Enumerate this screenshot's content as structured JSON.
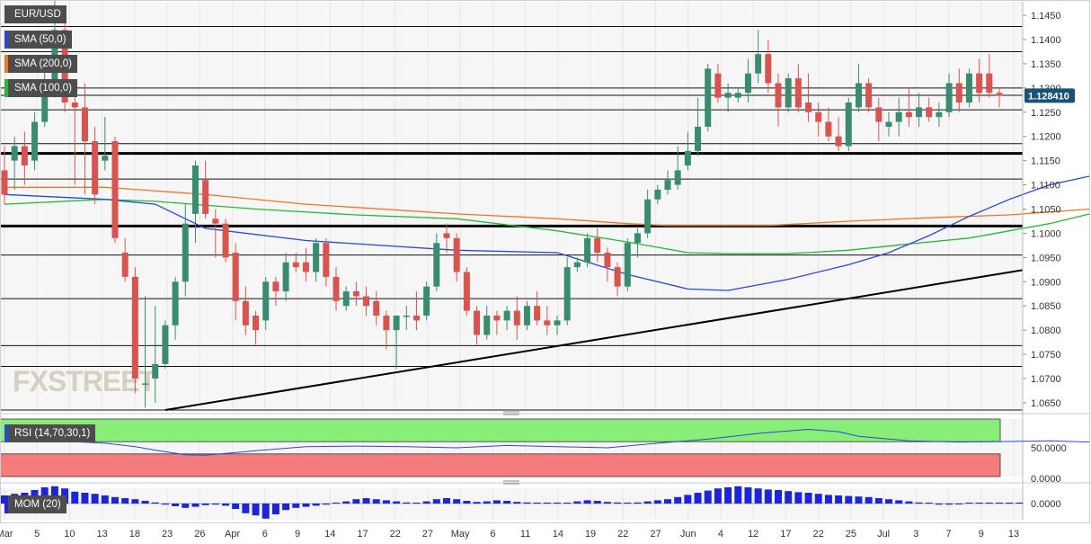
{
  "symbol": "EUR/USD",
  "indicators": {
    "sma50": "SMA (50,0)",
    "sma200": "SMA (200,0)",
    "sma100": "SMA (100,0)",
    "rsi": "RSI (14,70,30,1)",
    "mom": "MOM (20)"
  },
  "watermark": "FXSTREET",
  "colors": {
    "sma50": "#2b47d6",
    "sma200": "#ee7722",
    "sma100": "#22bb33",
    "bull": "#3a8c6e",
    "bear": "#d9534f",
    "rsi_line": "#2b47d6",
    "rsi_overbought": "#88ee77",
    "rsi_oversold": "#f47c7c",
    "mom": "#1c25d8",
    "price_tag": "#1a5276"
  },
  "price_label": "1.128410",
  "chart_data": {
    "type": "candlestick",
    "price_axis": {
      "range": [
        1.0635,
        1.1478
      ],
      "ticks": [
        "1.0650",
        "1.0700",
        "1.0750",
        "1.0800",
        "1.0850",
        "1.0900",
        "1.0950",
        "1.1000",
        "1.1050",
        "1.1100",
        "1.1150",
        "1.1200",
        "1.1250",
        "1.1300",
        "1.1350",
        "1.1400",
        "1.1450"
      ]
    },
    "date_ticks": [
      "Mar",
      "5",
      "10",
      "13",
      "18",
      "23",
      "26",
      "Apr",
      "6",
      "9",
      "14",
      "17",
      "22",
      "27",
      "May",
      "6",
      "11",
      "14",
      "19",
      "22",
      "27",
      "Jun",
      "4",
      "12",
      "17",
      "22",
      "25",
      "Jul",
      "3",
      "7",
      "9",
      "13"
    ],
    "horizontal_levels": [
      1.1427,
      1.1375,
      1.13,
      1.1285,
      1.1255,
      1.1185,
      1.1112,
      1.0955,
      1.0865,
      1.0768,
      1.0725,
      1.0635
    ],
    "major_levels": [
      1.1165,
      1.1015
    ],
    "trendline": [
      [
        1.0635,
        1.0924
      ]
    ],
    "candles": [
      {
        "o": 1.113,
        "h": 1.118,
        "l": 1.106,
        "c": 1.108
      },
      {
        "o": 1.115,
        "h": 1.12,
        "l": 1.109,
        "c": 1.118
      },
      {
        "o": 1.118,
        "h": 1.121,
        "l": 1.11,
        "c": 1.114
      },
      {
        "o": 1.115,
        "h": 1.125,
        "l": 1.113,
        "c": 1.123
      },
      {
        "o": 1.123,
        "h": 1.135,
        "l": 1.122,
        "c": 1.131
      },
      {
        "o": 1.13,
        "h": 1.148,
        "l": 1.128,
        "c": 1.142
      },
      {
        "o": 1.142,
        "h": 1.147,
        "l": 1.125,
        "c": 1.127
      },
      {
        "o": 1.127,
        "h": 1.131,
        "l": 1.11,
        "c": 1.126
      },
      {
        "o": 1.126,
        "h": 1.131,
        "l": 1.108,
        "c": 1.119
      },
      {
        "o": 1.119,
        "h": 1.122,
        "l": 1.106,
        "c": 1.108
      },
      {
        "o": 1.115,
        "h": 1.124,
        "l": 1.113,
        "c": 1.116
      },
      {
        "o": 1.119,
        "h": 1.12,
        "l": 1.098,
        "c": 1.099
      },
      {
        "o": 1.096,
        "h": 1.099,
        "l": 1.09,
        "c": 1.091
      },
      {
        "o": 1.091,
        "h": 1.093,
        "l": 1.067,
        "c": 1.07
      },
      {
        "o": 1.069,
        "h": 1.087,
        "l": 1.064,
        "c": 1.069
      },
      {
        "o": 1.07,
        "h": 1.085,
        "l": 1.065,
        "c": 1.073
      },
      {
        "o": 1.073,
        "h": 1.082,
        "l": 1.072,
        "c": 1.081
      },
      {
        "o": 1.081,
        "h": 1.091,
        "l": 1.078,
        "c": 1.09
      },
      {
        "o": 1.09,
        "h": 1.106,
        "l": 1.087,
        "c": 1.102
      },
      {
        "o": 1.104,
        "h": 1.115,
        "l": 1.098,
        "c": 1.114
      },
      {
        "o": 1.111,
        "h": 1.115,
        "l": 1.103,
        "c": 1.104
      },
      {
        "o": 1.103,
        "h": 1.105,
        "l": 1.095,
        "c": 1.102
      },
      {
        "o": 1.102,
        "h": 1.103,
        "l": 1.094,
        "c": 1.095
      },
      {
        "o": 1.096,
        "h": 1.098,
        "l": 1.082,
        "c": 1.086
      },
      {
        "o": 1.086,
        "h": 1.089,
        "l": 1.079,
        "c": 1.081
      },
      {
        "o": 1.083,
        "h": 1.084,
        "l": 1.077,
        "c": 1.08
      },
      {
        "o": 1.082,
        "h": 1.091,
        "l": 1.08,
        "c": 1.09
      },
      {
        "o": 1.09,
        "h": 1.091,
        "l": 1.085,
        "c": 1.088
      },
      {
        "o": 1.088,
        "h": 1.096,
        "l": 1.086,
        "c": 1.094
      },
      {
        "o": 1.094,
        "h": 1.096,
        "l": 1.092,
        "c": 1.093
      },
      {
        "o": 1.094,
        "h": 1.097,
        "l": 1.09,
        "c": 1.092
      },
      {
        "o": 1.092,
        "h": 1.099,
        "l": 1.09,
        "c": 1.098
      },
      {
        "o": 1.098,
        "h": 1.099,
        "l": 1.089,
        "c": 1.091
      },
      {
        "o": 1.091,
        "h": 1.093,
        "l": 1.084,
        "c": 1.086
      },
      {
        "o": 1.085,
        "h": 1.089,
        "l": 1.084,
        "c": 1.088
      },
      {
        "o": 1.088,
        "h": 1.09,
        "l": 1.085,
        "c": 1.087
      },
      {
        "o": 1.087,
        "h": 1.089,
        "l": 1.083,
        "c": 1.085
      },
      {
        "o": 1.086,
        "h": 1.088,
        "l": 1.081,
        "c": 1.083
      },
      {
        "o": 1.083,
        "h": 1.084,
        "l": 1.076,
        "c": 1.08
      },
      {
        "o": 1.08,
        "h": 1.083,
        "l": 1.072,
        "c": 1.083
      },
      {
        "o": 1.083,
        "h": 1.085,
        "l": 1.08,
        "c": 1.083
      },
      {
        "o": 1.083,
        "h": 1.088,
        "l": 1.08,
        "c": 1.082
      },
      {
        "o": 1.083,
        "h": 1.09,
        "l": 1.082,
        "c": 1.089
      },
      {
        "o": 1.089,
        "h": 1.1,
        "l": 1.088,
        "c": 1.098
      },
      {
        "o": 1.1,
        "h": 1.102,
        "l": 1.096,
        "c": 1.099
      },
      {
        "o": 1.099,
        "h": 1.1,
        "l": 1.09,
        "c": 1.092
      },
      {
        "o": 1.092,
        "h": 1.093,
        "l": 1.083,
        "c": 1.084
      },
      {
        "o": 1.084,
        "h": 1.085,
        "l": 1.077,
        "c": 1.079
      },
      {
        "o": 1.079,
        "h": 1.085,
        "l": 1.078,
        "c": 1.083
      },
      {
        "o": 1.083,
        "h": 1.084,
        "l": 1.079,
        "c": 1.082
      },
      {
        "o": 1.082,
        "h": 1.085,
        "l": 1.08,
        "c": 1.084
      },
      {
        "o": 1.084,
        "h": 1.087,
        "l": 1.078,
        "c": 1.081
      },
      {
        "o": 1.081,
        "h": 1.086,
        "l": 1.08,
        "c": 1.085
      },
      {
        "o": 1.085,
        "h": 1.088,
        "l": 1.081,
        "c": 1.082
      },
      {
        "o": 1.082,
        "h": 1.085,
        "l": 1.079,
        "c": 1.081
      },
      {
        "o": 1.081,
        "h": 1.083,
        "l": 1.079,
        "c": 1.082
      },
      {
        "o": 1.082,
        "h": 1.095,
        "l": 1.081,
        "c": 1.093
      },
      {
        "o": 1.093,
        "h": 1.095,
        "l": 1.092,
        "c": 1.094
      },
      {
        "o": 1.094,
        "h": 1.1,
        "l": 1.093,
        "c": 1.099
      },
      {
        "o": 1.099,
        "h": 1.101,
        "l": 1.094,
        "c": 1.096
      },
      {
        "o": 1.096,
        "h": 1.097,
        "l": 1.09,
        "c": 1.093
      },
      {
        "o": 1.093,
        "h": 1.094,
        "l": 1.087,
        "c": 1.089
      },
      {
        "o": 1.089,
        "h": 1.099,
        "l": 1.088,
        "c": 1.098
      },
      {
        "o": 1.098,
        "h": 1.101,
        "l": 1.095,
        "c": 1.1
      },
      {
        "o": 1.1,
        "h": 1.109,
        "l": 1.099,
        "c": 1.107
      },
      {
        "o": 1.107,
        "h": 1.11,
        "l": 1.106,
        "c": 1.109
      },
      {
        "o": 1.109,
        "h": 1.113,
        "l": 1.108,
        "c": 1.111
      },
      {
        "o": 1.11,
        "h": 1.118,
        "l": 1.109,
        "c": 1.113
      },
      {
        "o": 1.114,
        "h": 1.121,
        "l": 1.113,
        "c": 1.117
      },
      {
        "o": 1.117,
        "h": 1.128,
        "l": 1.116,
        "c": 1.122
      },
      {
        "o": 1.122,
        "h": 1.135,
        "l": 1.121,
        "c": 1.134
      },
      {
        "o": 1.133,
        "h": 1.135,
        "l": 1.127,
        "c": 1.128
      },
      {
        "o": 1.128,
        "h": 1.131,
        "l": 1.125,
        "c": 1.129
      },
      {
        "o": 1.128,
        "h": 1.13,
        "l": 1.127,
        "c": 1.129
      },
      {
        "o": 1.129,
        "h": 1.136,
        "l": 1.127,
        "c": 1.133
      },
      {
        "o": 1.133,
        "h": 1.142,
        "l": 1.131,
        "c": 1.137
      },
      {
        "o": 1.137,
        "h": 1.14,
        "l": 1.129,
        "c": 1.131
      },
      {
        "o": 1.131,
        "h": 1.133,
        "l": 1.122,
        "c": 1.126
      },
      {
        "o": 1.126,
        "h": 1.133,
        "l": 1.125,
        "c": 1.132
      },
      {
        "o": 1.132,
        "h": 1.135,
        "l": 1.125,
        "c": 1.126
      },
      {
        "o": 1.127,
        "h": 1.133,
        "l": 1.123,
        "c": 1.125
      },
      {
        "o": 1.125,
        "h": 1.127,
        "l": 1.12,
        "c": 1.123
      },
      {
        "o": 1.123,
        "h": 1.126,
        "l": 1.119,
        "c": 1.12
      },
      {
        "o": 1.12,
        "h": 1.124,
        "l": 1.117,
        "c": 1.118
      },
      {
        "o": 1.118,
        "h": 1.128,
        "l": 1.117,
        "c": 1.127
      },
      {
        "o": 1.126,
        "h": 1.135,
        "l": 1.125,
        "c": 1.131
      },
      {
        "o": 1.131,
        "h": 1.132,
        "l": 1.125,
        "c": 1.126
      },
      {
        "o": 1.126,
        "h": 1.128,
        "l": 1.119,
        "c": 1.123
      },
      {
        "o": 1.122,
        "h": 1.125,
        "l": 1.12,
        "c": 1.123
      },
      {
        "o": 1.123,
        "h": 1.128,
        "l": 1.12,
        "c": 1.125
      },
      {
        "o": 1.125,
        "h": 1.13,
        "l": 1.122,
        "c": 1.124
      },
      {
        "o": 1.124,
        "h": 1.129,
        "l": 1.122,
        "c": 1.126
      },
      {
        "o": 1.126,
        "h": 1.128,
        "l": 1.123,
        "c": 1.124
      },
      {
        "o": 1.124,
        "h": 1.127,
        "l": 1.122,
        "c": 1.125
      },
      {
        "o": 1.125,
        "h": 1.133,
        "l": 1.124,
        "c": 1.131
      },
      {
        "o": 1.131,
        "h": 1.134,
        "l": 1.125,
        "c": 1.127
      },
      {
        "o": 1.127,
        "h": 1.134,
        "l": 1.126,
        "c": 1.133
      },
      {
        "o": 1.133,
        "h": 1.136,
        "l": 1.127,
        "c": 1.129
      },
      {
        "o": 1.133,
        "h": 1.137,
        "l": 1.128,
        "c": 1.129
      },
      {
        "o": 1.129,
        "h": 1.13,
        "l": 1.126,
        "c": 1.1284
      }
    ],
    "sma50": [
      [
        0,
        1.108
      ],
      [
        10,
        1.107
      ],
      [
        15,
        1.106
      ],
      [
        20,
        1.101
      ],
      [
        30,
        1.0985
      ],
      [
        45,
        1.0965
      ],
      [
        55,
        1.096
      ],
      [
        62,
        1.0915
      ],
      [
        68,
        1.0885
      ],
      [
        72,
        1.0882
      ],
      [
        78,
        1.0905
      ],
      [
        84,
        1.0935
      ],
      [
        88,
        1.096
      ],
      [
        92,
        1.0995
      ],
      [
        96,
        1.1035
      ],
      [
        100,
        1.107
      ],
      [
        104,
        1.11
      ],
      [
        108,
        1.1118
      ]
    ],
    "sma200": [
      [
        0,
        1.1095
      ],
      [
        10,
        1.1095
      ],
      [
        20,
        1.108
      ],
      [
        30,
        1.106
      ],
      [
        45,
        1.104
      ],
      [
        55,
        1.103
      ],
      [
        62,
        1.102
      ],
      [
        66,
        1.1016
      ],
      [
        76,
        1.1016
      ],
      [
        84,
        1.1025
      ],
      [
        92,
        1.1032
      ],
      [
        100,
        1.1038
      ],
      [
        108,
        1.105
      ]
    ],
    "sma100": [
      [
        0,
        1.106
      ],
      [
        10,
        1.107
      ],
      [
        15,
        1.1066
      ],
      [
        25,
        1.105
      ],
      [
        35,
        1.1038
      ],
      [
        45,
        1.103
      ],
      [
        55,
        1.1005
      ],
      [
        62,
        1.0982
      ],
      [
        68,
        1.096
      ],
      [
        72,
        1.0958
      ],
      [
        78,
        1.0958
      ],
      [
        84,
        1.0965
      ],
      [
        90,
        1.0978
      ],
      [
        96,
        1.099
      ],
      [
        100,
        1.1005
      ],
      [
        104,
        1.102
      ],
      [
        108,
        1.104
      ]
    ],
    "rsi": {
      "label": "RSI (14,70,30,1)",
      "tick": "50.0000",
      "values": [
        [
          0,
          65
        ],
        [
          5,
          62
        ],
        [
          10,
          58
        ],
        [
          13,
          52
        ],
        [
          15,
          46
        ],
        [
          18,
          38
        ],
        [
          20,
          37
        ],
        [
          25,
          45
        ],
        [
          30,
          52
        ],
        [
          35,
          53
        ],
        [
          40,
          52
        ],
        [
          45,
          50
        ],
        [
          50,
          54
        ],
        [
          55,
          52
        ],
        [
          60,
          50
        ],
        [
          65,
          58
        ],
        [
          70,
          65
        ],
        [
          75,
          75
        ],
        [
          80,
          82
        ],
        [
          83,
          78
        ],
        [
          85,
          70
        ],
        [
          90,
          62
        ],
        [
          95,
          60
        ],
        [
          100,
          61
        ],
        [
          104,
          62
        ],
        [
          108,
          60
        ]
      ]
    },
    "momentum": {
      "label": "MOM (20)",
      "ticks": [
        "0.0000"
      ],
      "values": [
        0.0015,
        0.0018,
        0.002,
        0.0025,
        0.003,
        0.0032,
        0.0028,
        0.0022,
        0.002,
        0.0018,
        0.0015,
        0.0012,
        0.001,
        0.0008,
        0.0005,
        0.0002,
        -0.0002,
        -0.0005,
        -0.0008,
        -0.0006,
        -0.0003,
        -0.0002,
        -0.0004,
        -0.001,
        -0.0018,
        -0.0022,
        -0.0028,
        -0.002,
        -0.0012,
        -0.0008,
        -0.0006,
        -0.0004,
        -0.0002,
        0.0,
        0.0004,
        0.0008,
        0.001,
        0.0008,
        0.0006,
        0.0004,
        0.0002,
        0.0,
        0.0004,
        0.0008,
        0.001,
        0.0008,
        0.0005,
        0.0003,
        0.0004,
        0.0006,
        0.0005,
        0.0003,
        0.0002,
        0.0,
        0.0,
        0.0,
        0.0,
        0.0004,
        0.0006,
        0.0005,
        0.0003,
        0.0002,
        0.0,
        0.0002,
        0.0004,
        0.0006,
        0.0008,
        0.0012,
        0.0016,
        0.002,
        0.0024,
        0.0028,
        0.003,
        0.0032,
        0.003,
        0.0028,
        0.0026,
        0.0025,
        0.0023,
        0.0021,
        0.002,
        0.0018,
        0.0016,
        0.0015,
        0.0014,
        0.0013,
        0.0012,
        0.001,
        0.0008,
        0.0006,
        0.0004,
        0.0002,
        0.0,
        -0.0002,
        -0.0002,
        -0.0001,
        0.0,
        0.0001,
        0.0,
        0.0,
        0.0001,
        0.0
      ]
    }
  }
}
